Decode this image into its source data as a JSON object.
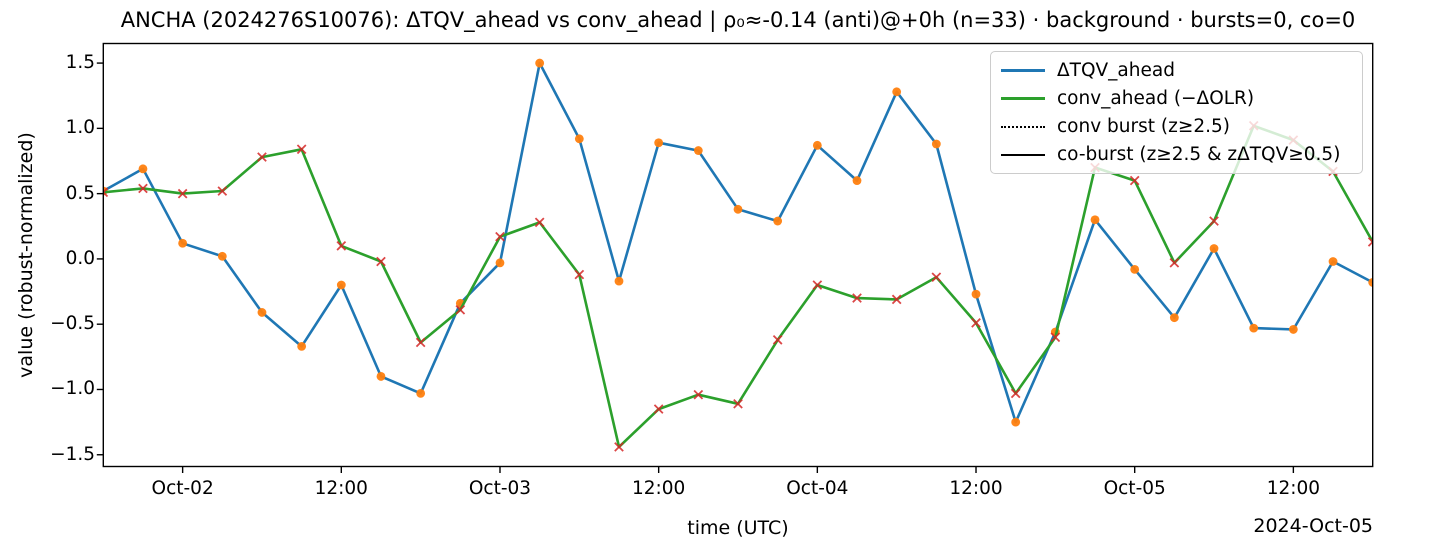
{
  "title": "ANCHA (2024276S10076): ΔTQV_ahead vs conv_ahead | ρ₀≈-0.14 (anti)@+0h (n=33) · background · bursts=0, co=0",
  "axes": {
    "xlabel": "time (UTC)",
    "ylabel": "value (robust-normalized)",
    "x_offset_label": "2024-Oct-05"
  },
  "legend": {
    "position": "upper right",
    "items": [
      {
        "label": "ΔTQV_ahead",
        "line_color": "#1f77b4",
        "line_style": "solid",
        "line_width": 3
      },
      {
        "label": "conv_ahead (−ΔOLR)",
        "line_color": "#2ca02c",
        "line_style": "solid",
        "line_width": 3
      },
      {
        "label": "conv burst (z≥2.5)",
        "line_color": "#000000",
        "line_style": "dotted",
        "line_width": 2
      },
      {
        "label": "co-burst (z≥2.5 & zΔTQV≥0.5)",
        "line_color": "#000000",
        "line_style": "solid",
        "line_width": 2
      }
    ]
  },
  "chart_data": {
    "type": "line",
    "title": "ANCHA (2024276S10076): ΔTQV_ahead vs conv_ahead | ρ₀≈-0.14 (anti)@+0h (n=33) · background · bursts=0, co=0",
    "xlabel": "time (UTC)",
    "ylabel": "value (robust-normalized)",
    "x_unit": "hours since 2024-10-02 00:00 UTC (3-hourly samples, n=33, Oct-01 18:00 → Oct-05 18:00)",
    "x": [
      -6,
      -3,
      0,
      3,
      6,
      9,
      12,
      15,
      18,
      21,
      24,
      27,
      30,
      33,
      36,
      39,
      42,
      45,
      48,
      51,
      54,
      57,
      60,
      63,
      66,
      69,
      72,
      75,
      78,
      81,
      84,
      87,
      90
    ],
    "series": [
      {
        "name": "ΔTQV_ahead",
        "color": "#1f77b4",
        "marker": "circle",
        "marker_color": "#ff7f0e",
        "values": [
          0.52,
          0.69,
          0.12,
          0.02,
          -0.41,
          -0.67,
          -0.2,
          -0.9,
          -1.03,
          -0.34,
          -0.03,
          1.5,
          0.92,
          -0.17,
          0.89,
          0.83,
          0.38,
          0.29,
          0.87,
          0.6,
          1.28,
          0.88,
          -0.27,
          -1.25,
          -0.56,
          0.3,
          -0.08,
          -0.45,
          0.08,
          -0.53,
          -0.54,
          -0.02,
          -0.18
        ]
      },
      {
        "name": "conv_ahead (−ΔOLR)",
        "color": "#2ca02c",
        "marker": "x",
        "marker_color": "#d62728",
        "values": [
          0.51,
          0.54,
          0.5,
          0.52,
          0.78,
          0.84,
          0.1,
          -0.02,
          -0.64,
          -0.39,
          0.17,
          0.28,
          -0.12,
          -1.44,
          -1.15,
          -1.04,
          -1.11,
          -0.62,
          -0.2,
          -0.3,
          -0.31,
          -0.14,
          -0.49,
          -1.03,
          -0.6,
          0.7,
          0.6,
          -0.03,
          0.29,
          1.02,
          0.91,
          0.67,
          0.13
        ]
      }
    ],
    "xlim": [
      -6,
      90
    ],
    "ylim": [
      -1.59,
      1.65
    ],
    "x_ticks": [
      {
        "pos": 0,
        "label": "Oct-02"
      },
      {
        "pos": 12,
        "label": "12:00"
      },
      {
        "pos": 24,
        "label": "Oct-03"
      },
      {
        "pos": 36,
        "label": "12:00"
      },
      {
        "pos": 48,
        "label": "Oct-04"
      },
      {
        "pos": 60,
        "label": "12:00"
      },
      {
        "pos": 72,
        "label": "Oct-05"
      },
      {
        "pos": 84,
        "label": "12:00"
      }
    ],
    "y_ticks": [
      {
        "pos": 1.5,
        "label": "1.5"
      },
      {
        "pos": 1.0,
        "label": "1.0"
      },
      {
        "pos": 0.5,
        "label": "0.5"
      },
      {
        "pos": 0.0,
        "label": "0.0"
      },
      {
        "pos": -0.5,
        "label": "−0.5"
      },
      {
        "pos": -1.0,
        "label": "−1.0"
      },
      {
        "pos": -1.5,
        "label": "−1.5"
      }
    ],
    "grid": false,
    "legend_position": "upper right"
  }
}
